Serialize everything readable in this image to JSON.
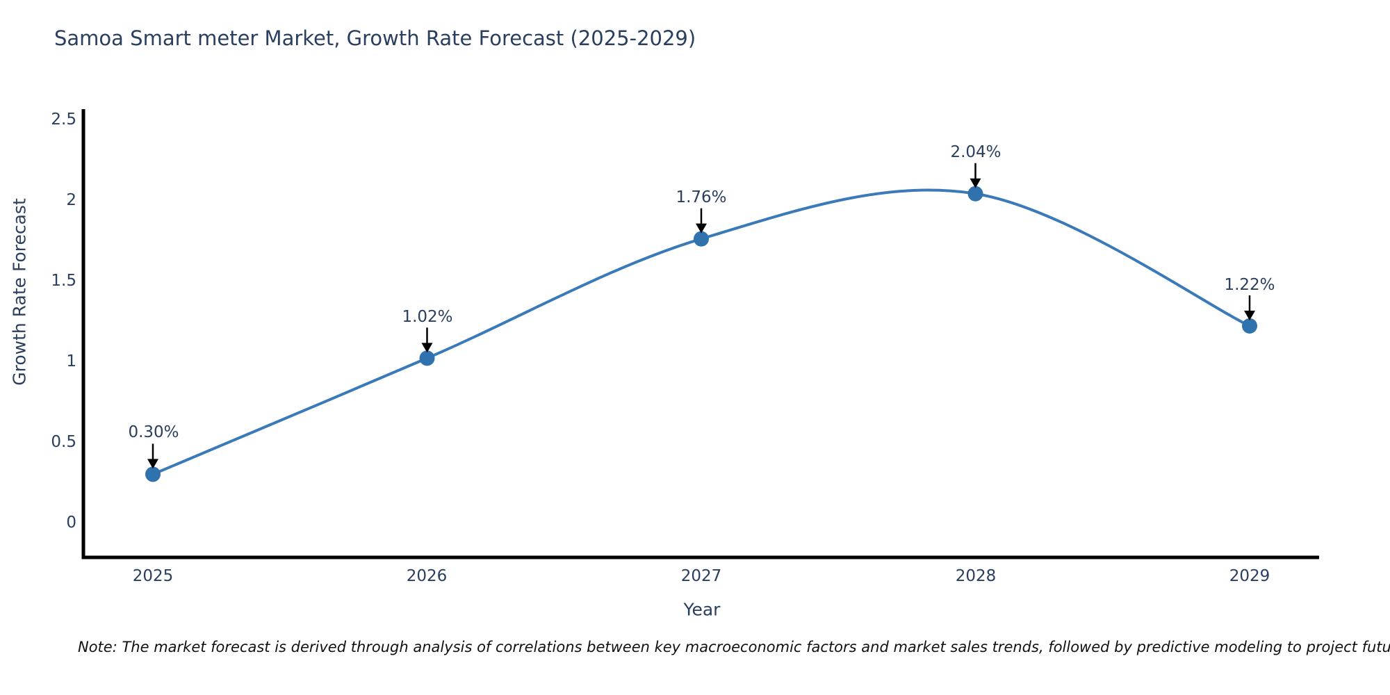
{
  "header": {
    "title": "Samoa Smart meter Market, Growth Rate Forecast (2025-2029)"
  },
  "footer": {
    "note": "Note: The market forecast is derived through analysis of correlations between key macroeconomic factors and market sales trends, followed by predictive modeling to project future sales"
  },
  "chart_data": {
    "type": "line",
    "line_shape": "spline",
    "title": "Samoa Smart meter Market, Growth Rate Forecast (2025-2029)",
    "xlabel": "Year",
    "ylabel": "Growth Rate Forecast",
    "x": [
      2025,
      2026,
      2027,
      2028,
      2029
    ],
    "xtick_labels": [
      "2025",
      "2026",
      "2027",
      "2028",
      "2029"
    ],
    "series": [
      {
        "name": "Growth Rate Forecast",
        "values": [
          0.3,
          1.02,
          1.76,
          2.04,
          1.22
        ]
      }
    ],
    "point_labels": [
      "0.30%",
      "1.02%",
      "1.76%",
      "2.04%",
      "1.22%"
    ],
    "yticks": [
      0,
      0.5,
      1,
      1.5,
      2,
      2.5
    ],
    "ytick_labels": [
      "0",
      "0.5",
      "1",
      "1.5",
      "2",
      "2.5"
    ],
    "ylim": [
      -0.11,
      2.5
    ],
    "grid": false,
    "legend": "none",
    "annotations": "black down-arrows from each percentage label to its data point",
    "colors": {
      "line": "#3a7ab8",
      "marker": "#2f72ae",
      "axis": "#000000",
      "arrow": "#000000",
      "tick_text": "#2a3f5f",
      "title_text": "#2a3f5f",
      "note_text": "#111111",
      "background": "#ffffff"
    }
  }
}
